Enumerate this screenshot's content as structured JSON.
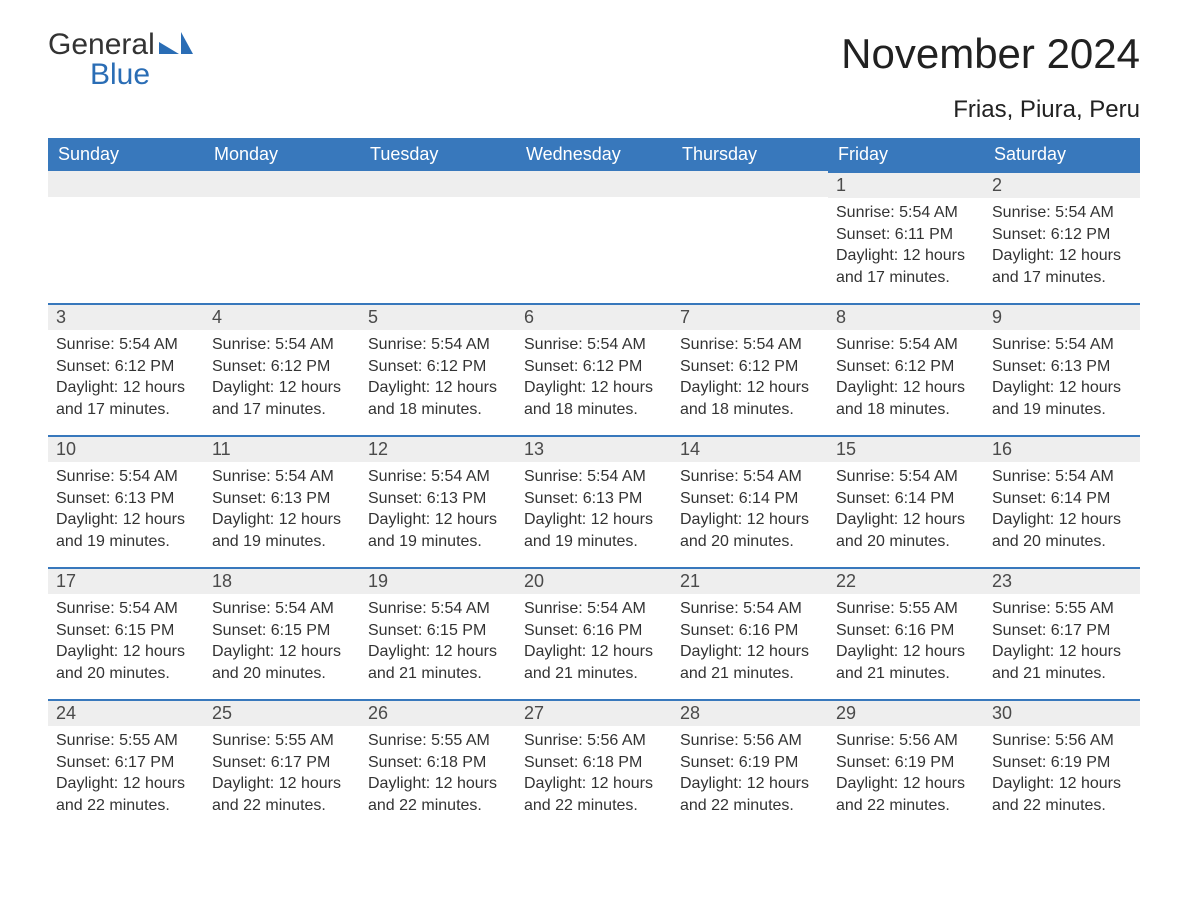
{
  "logo": {
    "text_general": "General",
    "text_blue": "Blue",
    "accent_color": "#2a6db5"
  },
  "title": "November 2024",
  "subtitle": "Frias, Piura, Peru",
  "colors": {
    "header_bg": "#3878bc",
    "header_text": "#ffffff",
    "daynum_bg": "#eeeeee",
    "daynum_border": "#3878bc",
    "body_text": "#333333"
  },
  "day_headers": [
    "Sunday",
    "Monday",
    "Tuesday",
    "Wednesday",
    "Thursday",
    "Friday",
    "Saturday"
  ],
  "weeks": [
    [
      null,
      null,
      null,
      null,
      null,
      {
        "n": "1",
        "sunrise": "Sunrise: 5:54 AM",
        "sunset": "Sunset: 6:11 PM",
        "daylight1": "Daylight: 12 hours",
        "daylight2": "and 17 minutes."
      },
      {
        "n": "2",
        "sunrise": "Sunrise: 5:54 AM",
        "sunset": "Sunset: 6:12 PM",
        "daylight1": "Daylight: 12 hours",
        "daylight2": "and 17 minutes."
      }
    ],
    [
      {
        "n": "3",
        "sunrise": "Sunrise: 5:54 AM",
        "sunset": "Sunset: 6:12 PM",
        "daylight1": "Daylight: 12 hours",
        "daylight2": "and 17 minutes."
      },
      {
        "n": "4",
        "sunrise": "Sunrise: 5:54 AM",
        "sunset": "Sunset: 6:12 PM",
        "daylight1": "Daylight: 12 hours",
        "daylight2": "and 17 minutes."
      },
      {
        "n": "5",
        "sunrise": "Sunrise: 5:54 AM",
        "sunset": "Sunset: 6:12 PM",
        "daylight1": "Daylight: 12 hours",
        "daylight2": "and 18 minutes."
      },
      {
        "n": "6",
        "sunrise": "Sunrise: 5:54 AM",
        "sunset": "Sunset: 6:12 PM",
        "daylight1": "Daylight: 12 hours",
        "daylight2": "and 18 minutes."
      },
      {
        "n": "7",
        "sunrise": "Sunrise: 5:54 AM",
        "sunset": "Sunset: 6:12 PM",
        "daylight1": "Daylight: 12 hours",
        "daylight2": "and 18 minutes."
      },
      {
        "n": "8",
        "sunrise": "Sunrise: 5:54 AM",
        "sunset": "Sunset: 6:12 PM",
        "daylight1": "Daylight: 12 hours",
        "daylight2": "and 18 minutes."
      },
      {
        "n": "9",
        "sunrise": "Sunrise: 5:54 AM",
        "sunset": "Sunset: 6:13 PM",
        "daylight1": "Daylight: 12 hours",
        "daylight2": "and 19 minutes."
      }
    ],
    [
      {
        "n": "10",
        "sunrise": "Sunrise: 5:54 AM",
        "sunset": "Sunset: 6:13 PM",
        "daylight1": "Daylight: 12 hours",
        "daylight2": "and 19 minutes."
      },
      {
        "n": "11",
        "sunrise": "Sunrise: 5:54 AM",
        "sunset": "Sunset: 6:13 PM",
        "daylight1": "Daylight: 12 hours",
        "daylight2": "and 19 minutes."
      },
      {
        "n": "12",
        "sunrise": "Sunrise: 5:54 AM",
        "sunset": "Sunset: 6:13 PM",
        "daylight1": "Daylight: 12 hours",
        "daylight2": "and 19 minutes."
      },
      {
        "n": "13",
        "sunrise": "Sunrise: 5:54 AM",
        "sunset": "Sunset: 6:13 PM",
        "daylight1": "Daylight: 12 hours",
        "daylight2": "and 19 minutes."
      },
      {
        "n": "14",
        "sunrise": "Sunrise: 5:54 AM",
        "sunset": "Sunset: 6:14 PM",
        "daylight1": "Daylight: 12 hours",
        "daylight2": "and 20 minutes."
      },
      {
        "n": "15",
        "sunrise": "Sunrise: 5:54 AM",
        "sunset": "Sunset: 6:14 PM",
        "daylight1": "Daylight: 12 hours",
        "daylight2": "and 20 minutes."
      },
      {
        "n": "16",
        "sunrise": "Sunrise: 5:54 AM",
        "sunset": "Sunset: 6:14 PM",
        "daylight1": "Daylight: 12 hours",
        "daylight2": "and 20 minutes."
      }
    ],
    [
      {
        "n": "17",
        "sunrise": "Sunrise: 5:54 AM",
        "sunset": "Sunset: 6:15 PM",
        "daylight1": "Daylight: 12 hours",
        "daylight2": "and 20 minutes."
      },
      {
        "n": "18",
        "sunrise": "Sunrise: 5:54 AM",
        "sunset": "Sunset: 6:15 PM",
        "daylight1": "Daylight: 12 hours",
        "daylight2": "and 20 minutes."
      },
      {
        "n": "19",
        "sunrise": "Sunrise: 5:54 AM",
        "sunset": "Sunset: 6:15 PM",
        "daylight1": "Daylight: 12 hours",
        "daylight2": "and 21 minutes."
      },
      {
        "n": "20",
        "sunrise": "Sunrise: 5:54 AM",
        "sunset": "Sunset: 6:16 PM",
        "daylight1": "Daylight: 12 hours",
        "daylight2": "and 21 minutes."
      },
      {
        "n": "21",
        "sunrise": "Sunrise: 5:54 AM",
        "sunset": "Sunset: 6:16 PM",
        "daylight1": "Daylight: 12 hours",
        "daylight2": "and 21 minutes."
      },
      {
        "n": "22",
        "sunrise": "Sunrise: 5:55 AM",
        "sunset": "Sunset: 6:16 PM",
        "daylight1": "Daylight: 12 hours",
        "daylight2": "and 21 minutes."
      },
      {
        "n": "23",
        "sunrise": "Sunrise: 5:55 AM",
        "sunset": "Sunset: 6:17 PM",
        "daylight1": "Daylight: 12 hours",
        "daylight2": "and 21 minutes."
      }
    ],
    [
      {
        "n": "24",
        "sunrise": "Sunrise: 5:55 AM",
        "sunset": "Sunset: 6:17 PM",
        "daylight1": "Daylight: 12 hours",
        "daylight2": "and 22 minutes."
      },
      {
        "n": "25",
        "sunrise": "Sunrise: 5:55 AM",
        "sunset": "Sunset: 6:17 PM",
        "daylight1": "Daylight: 12 hours",
        "daylight2": "and 22 minutes."
      },
      {
        "n": "26",
        "sunrise": "Sunrise: 5:55 AM",
        "sunset": "Sunset: 6:18 PM",
        "daylight1": "Daylight: 12 hours",
        "daylight2": "and 22 minutes."
      },
      {
        "n": "27",
        "sunrise": "Sunrise: 5:56 AM",
        "sunset": "Sunset: 6:18 PM",
        "daylight1": "Daylight: 12 hours",
        "daylight2": "and 22 minutes."
      },
      {
        "n": "28",
        "sunrise": "Sunrise: 5:56 AM",
        "sunset": "Sunset: 6:19 PM",
        "daylight1": "Daylight: 12 hours",
        "daylight2": "and 22 minutes."
      },
      {
        "n": "29",
        "sunrise": "Sunrise: 5:56 AM",
        "sunset": "Sunset: 6:19 PM",
        "daylight1": "Daylight: 12 hours",
        "daylight2": "and 22 minutes."
      },
      {
        "n": "30",
        "sunrise": "Sunrise: 5:56 AM",
        "sunset": "Sunset: 6:19 PM",
        "daylight1": "Daylight: 12 hours",
        "daylight2": "and 22 minutes."
      }
    ]
  ]
}
